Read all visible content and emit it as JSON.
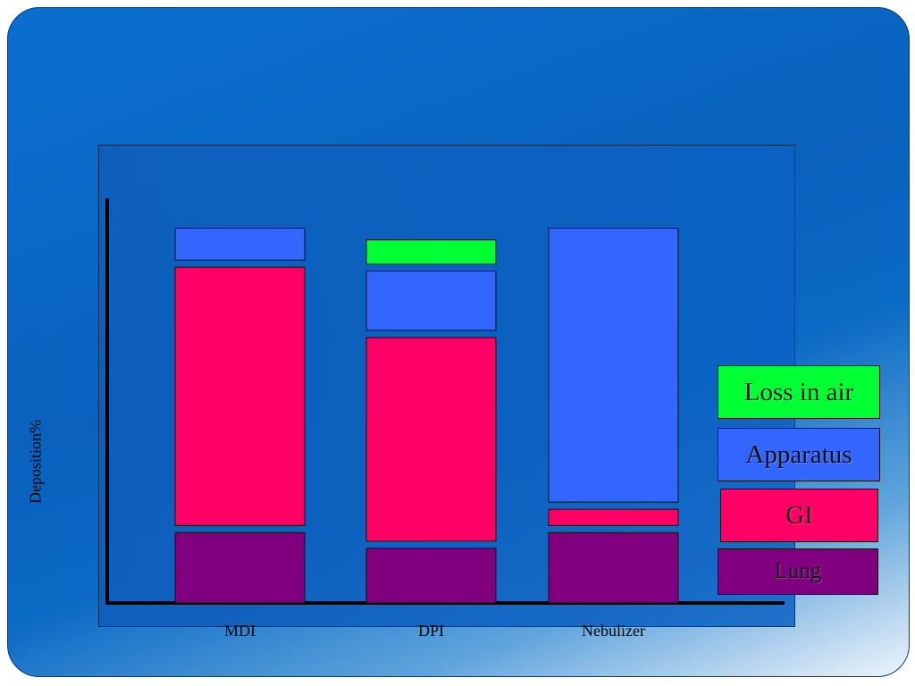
{
  "chart_data": {
    "type": "bar",
    "stacked": true,
    "categories": [
      "MDI",
      "DPI",
      "Nebulizer"
    ],
    "ylabel": "Deposition%",
    "xlabel": "",
    "ylim": [
      0,
      100
    ],
    "series": [
      {
        "name": "Lung",
        "color": "#800080",
        "values": [
          18,
          14,
          18
        ]
      },
      {
        "name": "GI",
        "color": "#ff0066",
        "values": [
          68,
          54,
          6
        ]
      },
      {
        "name": "Apparatus",
        "color": "#3366ff",
        "values": [
          10,
          17,
          72
        ]
      },
      {
        "name": "Loss in air",
        "color": "#00ff33",
        "values": [
          0,
          8,
          0
        ]
      }
    ],
    "legend_position": "right",
    "grid": false
  }
}
